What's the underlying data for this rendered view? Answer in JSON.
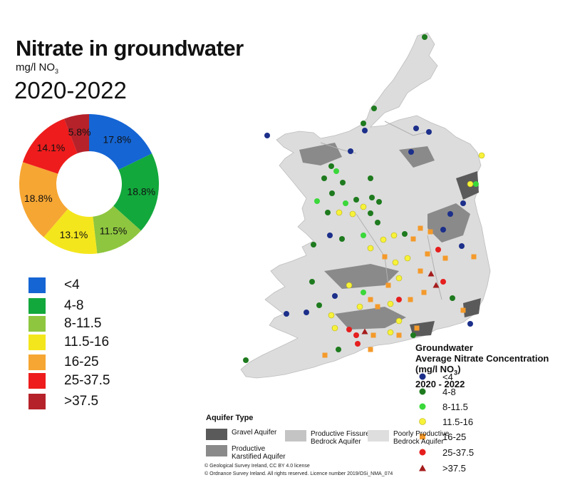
{
  "title": "Nitrate in groundwater",
  "unit_prefix": "mg/l NO",
  "unit_sub": "3",
  "years": "2020-2022",
  "colors": {
    "lt4": "#1565d4",
    "c4_8": "#12a83c",
    "c8_11": "#8ec63f",
    "c11_16": "#f4e61c",
    "c16_25": "#f6a633",
    "c25_37": "#ee1c1c",
    "gt37": "#b6222a"
  },
  "chart_data": {
    "type": "pie",
    "donut": true,
    "title": "Nitrate in groundwater 2020-2022",
    "categories": [
      "<4",
      "4-8",
      "8-11.5",
      "11.5-16",
      "16-25",
      "25-37.5",
      ">37.5"
    ],
    "values": [
      17.8,
      18.8,
      11.5,
      13.1,
      18.8,
      14.1,
      5.8
    ],
    "labels": [
      "17.8%",
      "18.8%",
      "11.5%",
      "13.1%",
      "18.8%",
      "14.1%",
      "5.8%"
    ],
    "colors": [
      "#1565d4",
      "#12a83c",
      "#8ec63f",
      "#f4e61c",
      "#f6a633",
      "#ee1c1c",
      "#b6222a"
    ]
  },
  "pie_legend": [
    "<4",
    "4-8",
    "8-11.5",
    "11.5-16",
    "16-25",
    "25-37.5",
    ">37.5"
  ],
  "map_legend": {
    "title_line1": "Groundwater",
    "title_line2": "Average Nitrate Concentration",
    "title_line3_prefix": "(mg/l NO",
    "title_line3_sub": "3",
    "title_line3_suffix": ")",
    "title_line4": "2020 - 2022",
    "items": [
      {
        "label": "<4",
        "color": "#1c2f8a",
        "shape": "circle"
      },
      {
        "label": "4-8",
        "color": "#1e7a1e",
        "shape": "circle"
      },
      {
        "label": "8-11.5",
        "color": "#3ad83a",
        "shape": "circle"
      },
      {
        "label": "11.5-16",
        "color": "#f7f23a",
        "shape": "circle"
      },
      {
        "label": "16-25",
        "color": "#f49a2b",
        "shape": "square"
      },
      {
        "label": "25-37.5",
        "color": "#e61e1e",
        "shape": "circle"
      },
      {
        "label": ">37.5",
        "color": "#a51c1c",
        "shape": "triangle"
      }
    ]
  },
  "aquifer": {
    "title": "Aquifer Type",
    "items": [
      {
        "label": "Gravel Aquifer",
        "color": "#5a5a5a"
      },
      {
        "label": "Productive Karstified Aquifer",
        "color": "#8a8a8a"
      },
      {
        "label": "Productive Fissured Bedrock Aquifer",
        "color": "#c4c4c4"
      },
      {
        "label": "Poorly Productive Bedrock Aquifer",
        "color": "#dedede"
      }
    ]
  },
  "credits": [
    "© Geological Survey Ireland, CC BY 4.0 license",
    "© Ordnance Survey Ireland. All rights reserved. Licence number 2019/OSi_NMA_074"
  ]
}
